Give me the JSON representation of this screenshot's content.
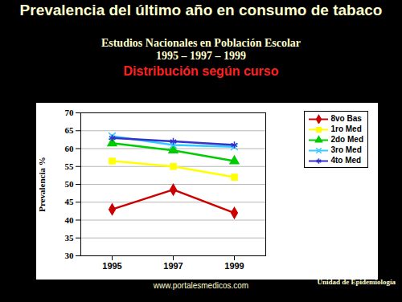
{
  "chart_data": {
    "type": "line",
    "title": "Prevalencia del último año en consumo de tabaco",
    "subtitle": [
      "Estudios Nacionales en Población Escolar",
      "1995 – 1997 – 1999"
    ],
    "annotations": [
      "Distribución según curso",
      "www.portalesmedicos.com",
      "Unidad de Epidemiología"
    ],
    "y_label": "Prevalencia %",
    "categories": [
      "1995",
      "1997",
      "1999"
    ],
    "series": [
      {
        "name": "8vo Bas",
        "color": "#cc0000",
        "marker": "diamond",
        "values": [
          43,
          48.5,
          42
        ]
      },
      {
        "name": "1ro Med",
        "color": "#ffff00",
        "marker": "square",
        "values": [
          56.5,
          55,
          52
        ]
      },
      {
        "name": "2do Med",
        "color": "#00cc00",
        "marker": "triangle",
        "values": [
          61.5,
          59.5,
          56.5
        ]
      },
      {
        "name": "3ro Med",
        "color": "#33ccff",
        "marker": "times",
        "values": [
          63.5,
          61,
          60.5
        ]
      },
      {
        "name": "4to Med",
        "color": "#3333cc",
        "marker": "asterisk",
        "values": [
          63,
          62,
          61
        ]
      }
    ],
    "ylim": [
      30,
      70
    ],
    "yticks": [
      30,
      35,
      40,
      45,
      50,
      55,
      60,
      65,
      70
    ],
    "grid": true,
    "legend": "top-right"
  }
}
